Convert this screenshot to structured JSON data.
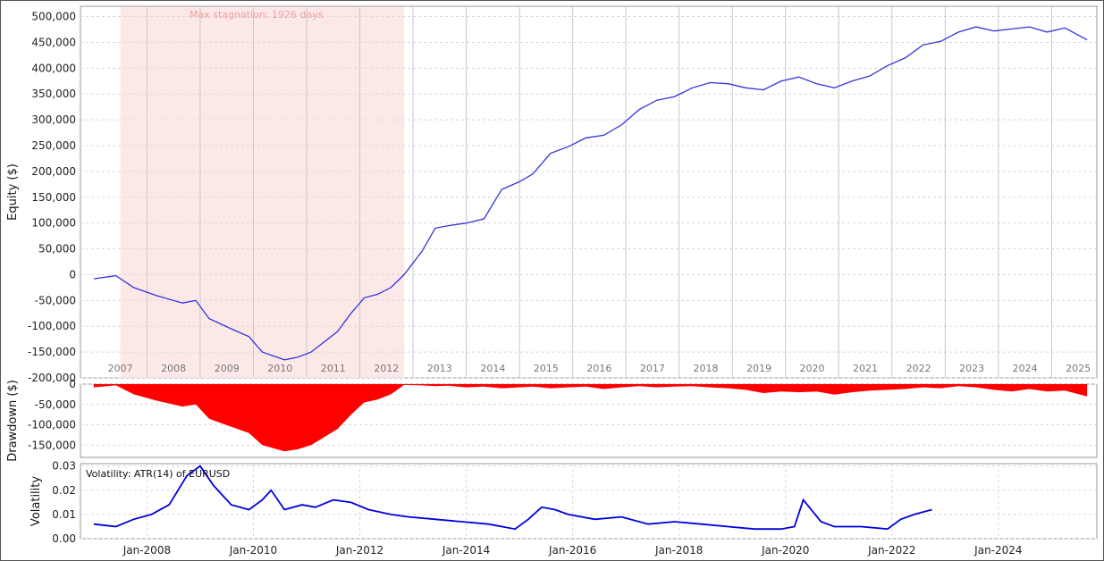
{
  "colors": {
    "equity_line": "#3333dd",
    "drawdown_fill": "#ff0000",
    "volatility_line": "#0000dd",
    "stagnation_fill": "#fde8e8",
    "grid": "#d8d8d8",
    "year_line": "#c8c8c8"
  },
  "chart_data": [
    {
      "type": "line",
      "panel": "equity",
      "ylabel": "Equity ($)",
      "ylim": [
        -200000,
        520000
      ],
      "yticks": [
        "500,000",
        "450,000",
        "400,000",
        "350,000",
        "300,000",
        "250,000",
        "200,000",
        "150,000",
        "100,000",
        "50,000",
        "0",
        "-50,000",
        "-100,000",
        "-150,000",
        "-200,000"
      ],
      "year_labels": [
        "2007",
        "2008",
        "2009",
        "2010",
        "2011",
        "2012",
        "2013",
        "2014",
        "2015",
        "2016",
        "2017",
        "2018",
        "2019",
        "2020",
        "2021",
        "2022",
        "2023",
        "2024",
        "2025"
      ],
      "annotation": "Max stagnation: 1926 days",
      "stagnation_period": [
        "2007-07",
        "2012-11"
      ],
      "grid": true,
      "series": [
        {
          "x": [
            "2007-01",
            "2007-06",
            "2007-10",
            "2008-03",
            "2008-09",
            "2008-12",
            "2009-03",
            "2009-08",
            "2009-12",
            "2010-03",
            "2010-08",
            "2010-11",
            "2011-02",
            "2011-05",
            "2011-08",
            "2011-11",
            "2012-02",
            "2012-05",
            "2012-08",
            "2012-11",
            "2013-03",
            "2013-06",
            "2013-09",
            "2014-01",
            "2014-05",
            "2014-09",
            "2015-01",
            "2015-04",
            "2015-08",
            "2015-12",
            "2016-04",
            "2016-08",
            "2016-12",
            "2017-04",
            "2017-08",
            "2017-12",
            "2018-04",
            "2018-08",
            "2018-12",
            "2019-04",
            "2019-08",
            "2019-12",
            "2020-04",
            "2020-08",
            "2020-12",
            "2021-04",
            "2021-08",
            "2021-12",
            "2022-04",
            "2022-08",
            "2022-12",
            "2023-04",
            "2023-08",
            "2023-12",
            "2024-04",
            "2024-08",
            "2024-12",
            "2025-04",
            "2025-09"
          ],
          "values": [
            -8000,
            -2000,
            -25000,
            -40000,
            -55000,
            -50000,
            -85000,
            -105000,
            -120000,
            -150000,
            -165000,
            -160000,
            -150000,
            -130000,
            -110000,
            -75000,
            -45000,
            -38000,
            -25000,
            0,
            45000,
            90000,
            95000,
            100000,
            108000,
            165000,
            180000,
            195000,
            235000,
            248000,
            265000,
            270000,
            290000,
            320000,
            338000,
            345000,
            362000,
            372000,
            370000,
            362000,
            358000,
            375000,
            383000,
            370000,
            362000,
            375000,
            385000,
            405000,
            420000,
            445000,
            452000,
            470000,
            480000,
            472000,
            476000,
            480000,
            470000,
            478000,
            455000
          ]
        }
      ]
    },
    {
      "type": "area",
      "panel": "drawdown",
      "ylabel": "Drawdown ($)",
      "ylim": [
        -180000,
        0
      ],
      "yticks": [
        "0",
        "-50,000",
        "-100,000",
        "-150,000"
      ],
      "grid": true,
      "series": [
        {
          "x": [
            "2007-01",
            "2007-06",
            "2007-10",
            "2008-03",
            "2008-09",
            "2008-12",
            "2009-03",
            "2009-08",
            "2009-12",
            "2010-03",
            "2010-08",
            "2010-11",
            "2011-02",
            "2011-05",
            "2011-08",
            "2011-11",
            "2012-02",
            "2012-05",
            "2012-08",
            "2012-11",
            "2013-03",
            "2013-06",
            "2013-09",
            "2014-01",
            "2014-05",
            "2014-09",
            "2015-01",
            "2015-04",
            "2015-08",
            "2015-12",
            "2016-04",
            "2016-08",
            "2016-12",
            "2017-04",
            "2017-08",
            "2017-12",
            "2018-04",
            "2018-08",
            "2018-12",
            "2019-04",
            "2019-08",
            "2019-12",
            "2020-04",
            "2020-08",
            "2020-12",
            "2021-04",
            "2021-08",
            "2021-12",
            "2022-04",
            "2022-08",
            "2022-12",
            "2023-04",
            "2023-08",
            "2023-12",
            "2024-04",
            "2024-08",
            "2024-12",
            "2025-04",
            "2025-09"
          ],
          "values": [
            -8000,
            -3000,
            -25000,
            -40000,
            -55000,
            -50000,
            -85000,
            -105000,
            -120000,
            -150000,
            -165000,
            -160000,
            -150000,
            -130000,
            -110000,
            -75000,
            -45000,
            -38000,
            -25000,
            -2000,
            -3000,
            -5000,
            -4000,
            -8000,
            -6000,
            -10000,
            -8000,
            -6000,
            -10000,
            -8000,
            -6000,
            -12000,
            -8000,
            -5000,
            -8000,
            -6000,
            -5000,
            -8000,
            -10000,
            -14000,
            -22000,
            -18000,
            -20000,
            -18000,
            -26000,
            -20000,
            -16000,
            -14000,
            -12000,
            -8000,
            -10000,
            -5000,
            -8000,
            -14000,
            -18000,
            -12000,
            -18000,
            -16000,
            -30000
          ]
        }
      ]
    },
    {
      "type": "line",
      "panel": "volatility",
      "ylabel": "Volatility",
      "legend": "Volatility: ATR(14) of EURUSD",
      "ylim": [
        0,
        0.031
      ],
      "yticks": [
        "0.03",
        "0.02",
        "0.01",
        "0.00"
      ],
      "xticks": [
        "Jan-2008",
        "Jan-2010",
        "Jan-2012",
        "Jan-2014",
        "Jan-2016",
        "Jan-2018",
        "Jan-2020",
        "Jan-2022",
        "Jan-2024"
      ],
      "grid": true,
      "series": [
        {
          "x": [
            "2007-01",
            "2007-06",
            "2007-10",
            "2008-02",
            "2008-06",
            "2008-10",
            "2009-01",
            "2009-04",
            "2009-08",
            "2009-12",
            "2010-03",
            "2010-05",
            "2010-08",
            "2010-12",
            "2011-03",
            "2011-07",
            "2011-11",
            "2012-03",
            "2012-08",
            "2012-12",
            "2013-06",
            "2013-12",
            "2014-06",
            "2014-12",
            "2015-03",
            "2015-06",
            "2015-09",
            "2015-12",
            "2016-06",
            "2016-12",
            "2017-06",
            "2017-12",
            "2018-06",
            "2018-12",
            "2019-06",
            "2019-12",
            "2020-03",
            "2020-05",
            "2020-09",
            "2020-12",
            "2021-06",
            "2021-12",
            "2022-03",
            "2022-06",
            "2022-10"
          ],
          "values": [
            0.006,
            0.005,
            0.008,
            0.01,
            0.014,
            0.026,
            0.03,
            0.022,
            0.014,
            0.012,
            0.016,
            0.02,
            0.012,
            0.014,
            0.013,
            0.016,
            0.015,
            0.012,
            0.01,
            0.009,
            0.008,
            0.007,
            0.006,
            0.004,
            0.008,
            0.013,
            0.012,
            0.01,
            0.008,
            0.009,
            0.006,
            0.007,
            0.006,
            0.005,
            0.004,
            0.004,
            0.005,
            0.016,
            0.007,
            0.005,
            0.005,
            0.004,
            0.008,
            0.01,
            0.012
          ]
        }
      ]
    }
  ]
}
